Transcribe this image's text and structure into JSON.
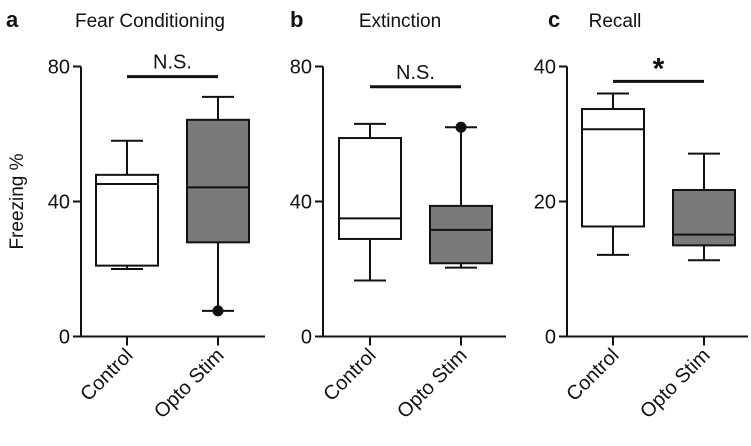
{
  "chart_data": [
    {
      "type": "box",
      "panel_letter": "a",
      "title": "Fear Conditioning",
      "ylabel": "Freezing %",
      "ylim": [
        0,
        80
      ],
      "yticks": [
        "0",
        "40",
        "80"
      ],
      "ytick_values": [
        0,
        40,
        80
      ],
      "categories": [
        "Control",
        "Opto Stim"
      ],
      "boxes": [
        {
          "name": "Control",
          "min": 20,
          "q1": 21,
          "median": 45.2,
          "q3": 47.9,
          "max": 58,
          "fill": "#ffffff",
          "outliers": []
        },
        {
          "name": "Opto Stim",
          "min": 7.6,
          "q1": 27.9,
          "median": 44.2,
          "q3": 64.2,
          "max": 71,
          "fill": "#7a7a7a",
          "outliers": [
            7.6
          ]
        }
      ],
      "significance": {
        "label": "N.S.",
        "y": 77
      }
    },
    {
      "type": "box",
      "panel_letter": "b",
      "title": "Extinction",
      "ylabel": "",
      "ylim": [
        0,
        80
      ],
      "yticks": [
        "0",
        "40",
        "80"
      ],
      "ytick_values": [
        0,
        40,
        80
      ],
      "categories": [
        "Control",
        "Opto Stim"
      ],
      "boxes": [
        {
          "name": "Control",
          "min": 16.6,
          "q1": 28.9,
          "median": 35,
          "q3": 58.8,
          "max": 63,
          "fill": "#ffffff",
          "outliers": []
        },
        {
          "name": "Opto Stim",
          "min": 20.4,
          "q1": 21.7,
          "median": 31.6,
          "q3": 38.7,
          "max": 62,
          "fill": "#7a7a7a",
          "outliers": [
            62
          ]
        }
      ],
      "significance": {
        "label": "N.S.",
        "y": 74
      }
    },
    {
      "type": "box",
      "panel_letter": "c",
      "title": "Recall",
      "ylabel": "",
      "ylim": [
        0,
        40
      ],
      "yticks": [
        "0",
        "20",
        "40"
      ],
      "ytick_values": [
        0,
        20,
        40
      ],
      "categories": [
        "Control",
        "Opto Stim"
      ],
      "boxes": [
        {
          "name": "Control",
          "min": 12.1,
          "q1": 16.3,
          "median": 30.7,
          "q3": 33.7,
          "max": 36,
          "fill": "#ffffff",
          "outliers": []
        },
        {
          "name": "Opto Stim",
          "min": 11.3,
          "q1": 13.5,
          "median": 15.1,
          "q3": 21.7,
          "max": 27.1,
          "fill": "#7a7a7a",
          "outliers": []
        }
      ],
      "significance": {
        "label": "*",
        "y": 37.8
      }
    }
  ]
}
